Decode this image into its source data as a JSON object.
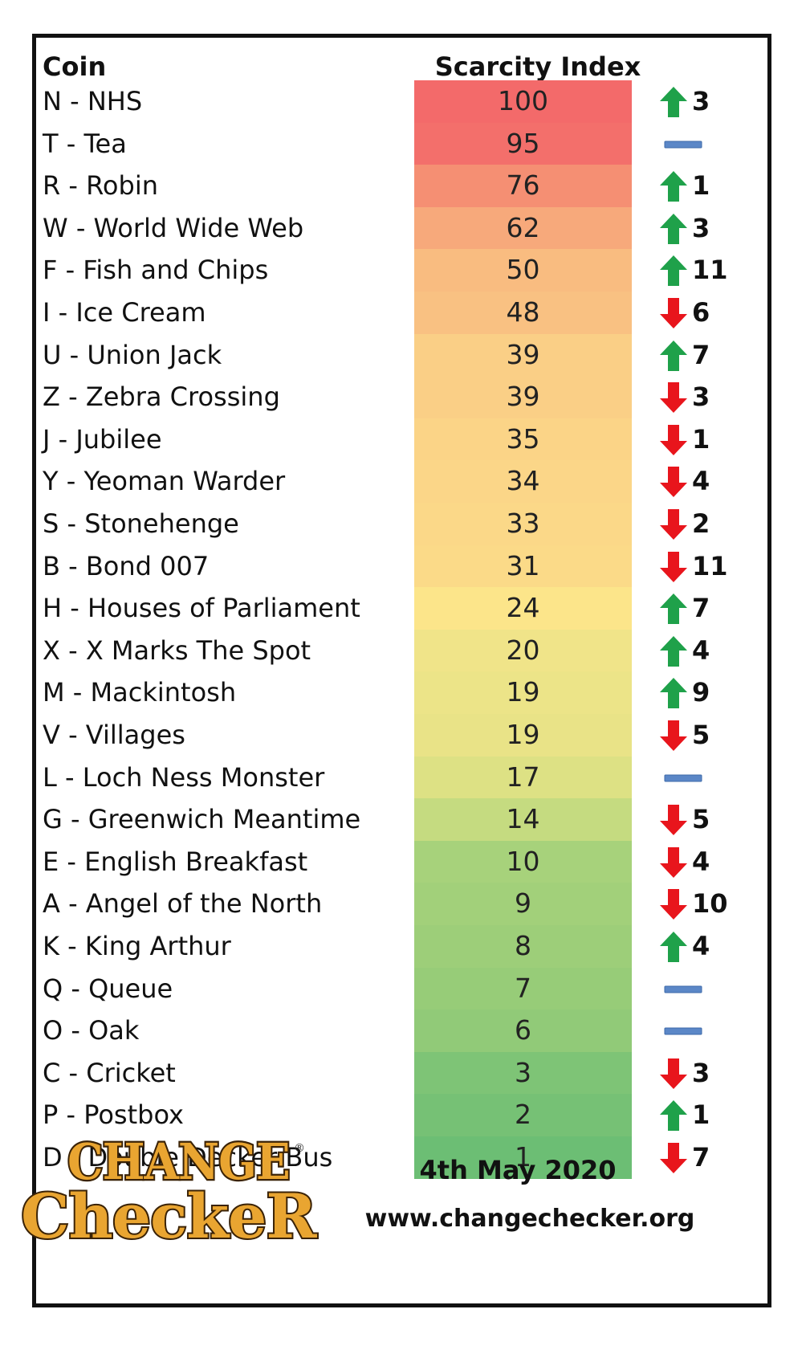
{
  "header": {
    "coin": "Coin",
    "index": "Scarcity Index"
  },
  "colors": {
    "up": "#1fa14a",
    "down": "#e8151c",
    "same": "#5b87c7"
  },
  "chart_data": {
    "type": "table",
    "columns": [
      "Coin",
      "Scarcity Index"
    ],
    "rows": [
      {
        "coin": "N - NHS",
        "value": 100,
        "change": "up",
        "amount": "3",
        "color": "#f36a6a"
      },
      {
        "coin": "T - Tea",
        "value": 95,
        "change": "same",
        "amount": "",
        "color": "#f36f6b"
      },
      {
        "coin": "R - Robin",
        "value": 76,
        "change": "up",
        "amount": "1",
        "color": "#f58f73"
      },
      {
        "coin": "W - World Wide Web",
        "value": 62,
        "change": "up",
        "amount": "3",
        "color": "#f7a97b"
      },
      {
        "coin": "F - Fish and Chips",
        "value": 50,
        "change": "up",
        "amount": "11",
        "color": "#f9bc80"
      },
      {
        "coin": "I - Ice Cream",
        "value": 48,
        "change": "down",
        "amount": "6",
        "color": "#f9c182"
      },
      {
        "coin": "U - Union Jack",
        "value": 39,
        "change": "up",
        "amount": "7",
        "color": "#facf86"
      },
      {
        "coin": "Z - Zebra Crossing",
        "value": 39,
        "change": "down",
        "amount": "3",
        "color": "#facf86"
      },
      {
        "coin": "J - Jubilee",
        "value": 35,
        "change": "down",
        "amount": "1",
        "color": "#fbd487"
      },
      {
        "coin": "Y - Yeoman Warder",
        "value": 34,
        "change": "down",
        "amount": "4",
        "color": "#fbd688"
      },
      {
        "coin": "S - Stonehenge",
        "value": 33,
        "change": "down",
        "amount": "2",
        "color": "#fbd888"
      },
      {
        "coin": "B - Bond 007",
        "value": 31,
        "change": "down",
        "amount": "11",
        "color": "#fbda88"
      },
      {
        "coin": "H - Houses of Parliament",
        "value": 24,
        "change": "up",
        "amount": "7",
        "color": "#fce58a"
      },
      {
        "coin": "X - X Marks The Spot",
        "value": 20,
        "change": "up",
        "amount": "4",
        "color": "#f0e489"
      },
      {
        "coin": "M - Mackintosh",
        "value": 19,
        "change": "up",
        "amount": "9",
        "color": "#ece488"
      },
      {
        "coin": "V - Villages",
        "value": 19,
        "change": "down",
        "amount": "5",
        "color": "#e9e387"
      },
      {
        "coin": "L - Loch Ness Monster",
        "value": 17,
        "change": "same",
        "amount": "",
        "color": "#dde184"
      },
      {
        "coin": "G - Greenwich Meantime",
        "value": 14,
        "change": "down",
        "amount": "5",
        "color": "#c5db80"
      },
      {
        "coin": "E - English Breakfast",
        "value": 10,
        "change": "down",
        "amount": "4",
        "color": "#a7d27b"
      },
      {
        "coin": "A - Angel of the North",
        "value": 9,
        "change": "down",
        "amount": "10",
        "color": "#a2d07a"
      },
      {
        "coin": "K - King Arthur",
        "value": 8,
        "change": "up",
        "amount": "4",
        "color": "#9dce79"
      },
      {
        "coin": "Q - Queue",
        "value": 7,
        "change": "same",
        "amount": "",
        "color": "#97cc78"
      },
      {
        "coin": "O - Oak",
        "value": 6,
        "change": "same",
        "amount": "",
        "color": "#91ca78"
      },
      {
        "coin": "C - Cricket",
        "value": 3,
        "change": "down",
        "amount": "3",
        "color": "#7ec476"
      },
      {
        "coin": "P - Postbox",
        "value": 2,
        "change": "up",
        "amount": "1",
        "color": "#76c175"
      },
      {
        "coin": "D - Double Decker Bus",
        "value": 1,
        "change": "down",
        "amount": "7",
        "color": "#6cbe74"
      }
    ]
  },
  "footer": {
    "logo_line1": "CHANGE",
    "logo_line2": "CheckeR",
    "logo_reg": "®",
    "date": "4th May 2020",
    "website": "www.changechecker.org"
  }
}
